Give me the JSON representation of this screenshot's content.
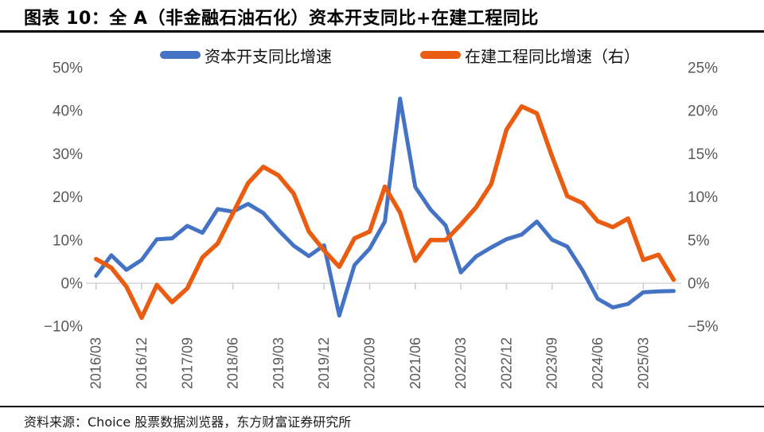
{
  "header": {
    "title": "图表 10：全 A（非金融石油石化）资本开支同比+在建工程同比"
  },
  "legend": {
    "items": [
      {
        "label": "资本开支同比增速",
        "color": "#4472c4"
      },
      {
        "label": "在建工程同比增速（右）",
        "color": "#ea5d10"
      }
    ]
  },
  "footer": {
    "source": "资料来源：Choice 股票数据浏览器，东方财富证券研究所"
  },
  "chart_data": {
    "type": "line",
    "title": "全A（非金融石油石化）资本开支同比+在建工程同比",
    "categories": [
      "2016/03",
      "2016/06",
      "2016/09",
      "2016/12",
      "2017/03",
      "2017/06",
      "2017/09",
      "2017/12",
      "2018/03",
      "2018/06",
      "2018/09",
      "2018/12",
      "2019/03",
      "2019/06",
      "2019/09",
      "2019/12",
      "2020/03",
      "2020/06",
      "2020/09",
      "2020/12",
      "2021/03",
      "2021/06",
      "2021/09",
      "2021/12",
      "2022/03",
      "2022/06",
      "2022/09",
      "2022/12",
      "2023/03",
      "2023/06",
      "2023/09",
      "2023/12",
      "2024/03",
      "2024/06",
      "2024/09",
      "2024/12",
      "2025/03",
      "2025/06",
      "2025/09"
    ],
    "series": [
      {
        "name": "资本开支同比增速",
        "axis": "left",
        "color": "#4472c4",
        "values": [
          1.7,
          6.5,
          3.1,
          5.4,
          10.2,
          10.4,
          13.3,
          11.7,
          17.2,
          16.6,
          18.4,
          16.3,
          12.3,
          8.7,
          6.3,
          8.8,
          -7.5,
          4.2,
          8.0,
          14.3,
          42.8,
          22.3,
          17.1,
          13.4,
          2.5,
          6.2,
          8.3,
          10.2,
          11.3,
          14.3,
          10.1,
          8.5,
          3.0,
          -3.6,
          -5.6,
          -4.8,
          -2.1,
          -1.9,
          -1.8
        ]
      },
      {
        "name": "在建工程同比增速（右）",
        "axis": "right",
        "color": "#ea5d10",
        "values": [
          2.8,
          1.8,
          -0.4,
          -4.0,
          -0.2,
          -2.2,
          -0.6,
          3.0,
          4.6,
          8.1,
          11.6,
          13.5,
          12.5,
          10.4,
          6.0,
          3.8,
          1.9,
          5.2,
          6.0,
          11.2,
          8.2,
          2.6,
          5.0,
          5.0,
          6.8,
          8.8,
          11.5,
          17.8,
          20.5,
          19.7,
          14.7,
          10.1,
          9.3,
          7.2,
          6.5,
          7.5,
          2.7,
          3.3,
          0.4
        ]
      }
    ],
    "left_axis": {
      "range": [
        -10,
        50
      ],
      "ticks": [
        {
          "label": "50%",
          "value": 50
        },
        {
          "label": "40%",
          "value": 40
        },
        {
          "label": "30%",
          "value": 30
        },
        {
          "label": "20%",
          "value": 20
        },
        {
          "label": "10%",
          "value": 10
        },
        {
          "label": "0%",
          "value": 0
        },
        {
          "label": "−10%",
          "value": -10
        }
      ]
    },
    "right_axis": {
      "range": [
        -5,
        25
      ],
      "ticks": [
        {
          "label": "25%",
          "value": 25
        },
        {
          "label": "20%",
          "value": 20
        },
        {
          "label": "15%",
          "value": 15
        },
        {
          "label": "10%",
          "value": 10
        },
        {
          "label": "5%",
          "value": 5
        },
        {
          "label": "0%",
          "value": 0
        },
        {
          "label": "−5%",
          "value": -5
        }
      ]
    },
    "x_tick_labels": [
      "2016/03",
      "2016/12",
      "2017/09",
      "2018/06",
      "2019/03",
      "2019/12",
      "2020/09",
      "2021/06",
      "2022/03",
      "2022/12",
      "2023/09",
      "2024/06",
      "2025/03"
    ],
    "x_tick_every": 3,
    "grid": "zero-line-only",
    "legend_position": "top",
    "colors": {
      "axis_text": "#595959",
      "zero_line": "#d6d6d6",
      "tick_mark": "#c9c9c9"
    }
  }
}
